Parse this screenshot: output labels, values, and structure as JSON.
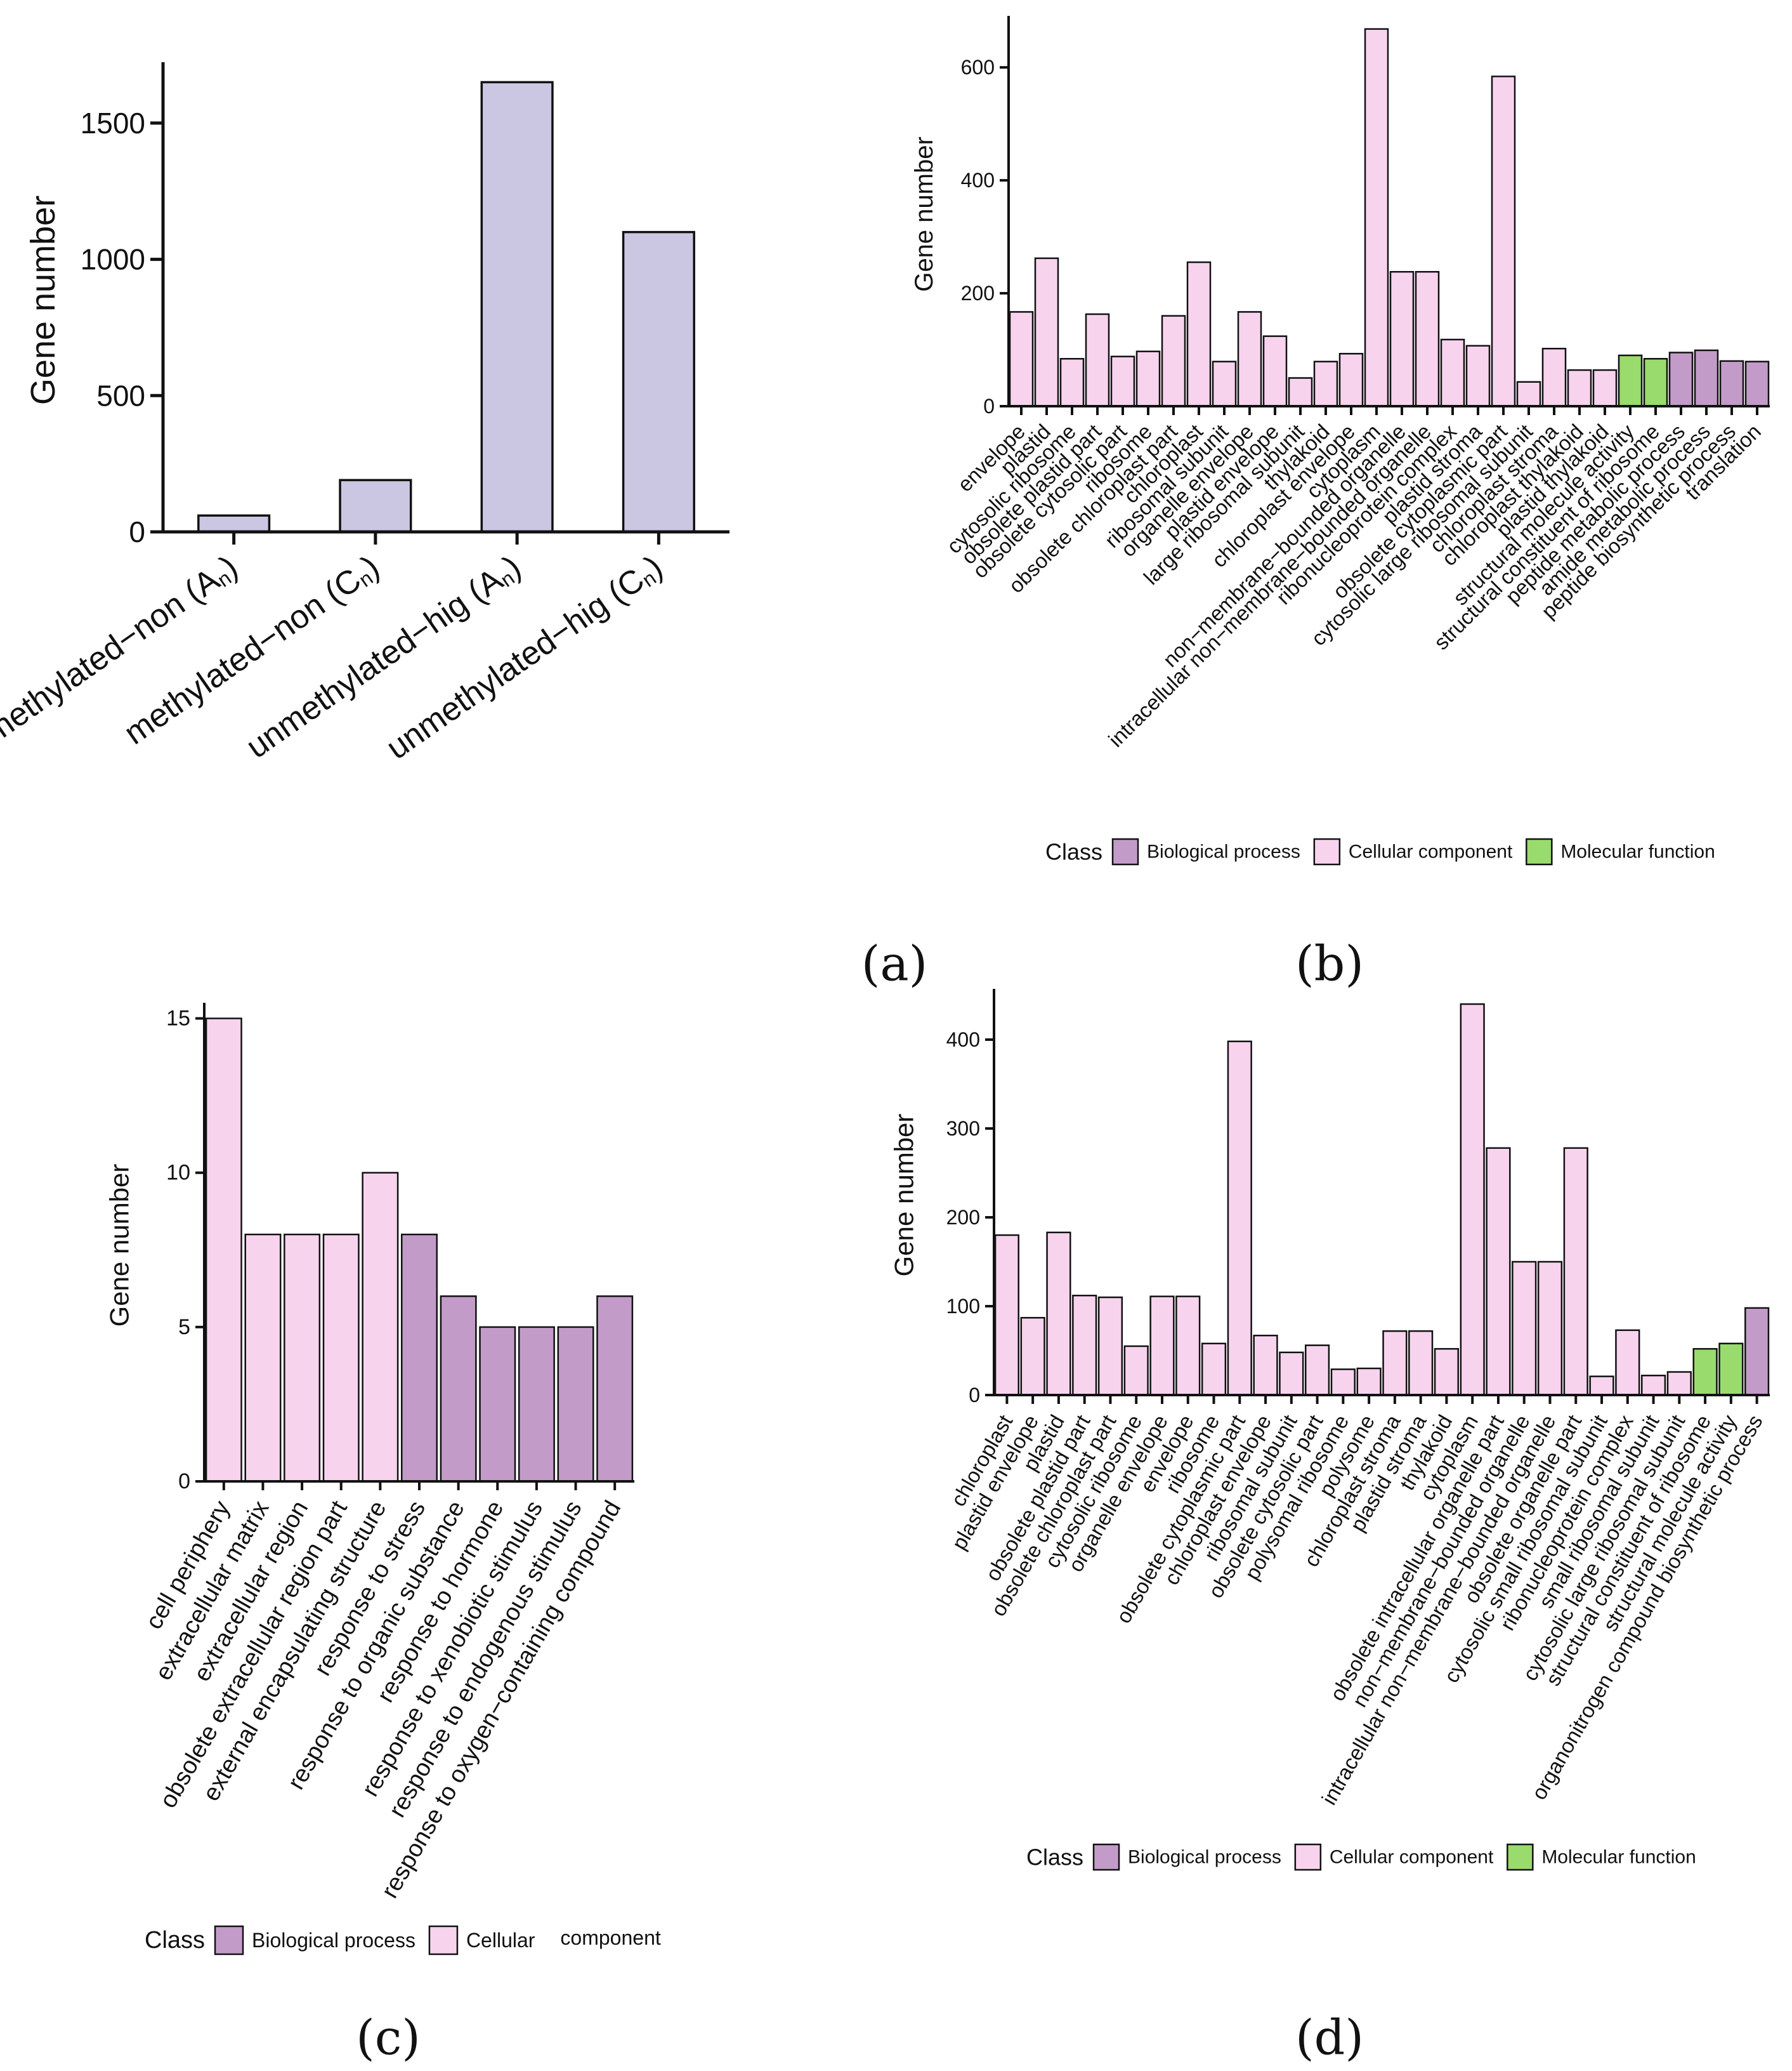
{
  "colors": {
    "a_bar": "#cbc7e2",
    "biological_process": "#c39bc9",
    "cellular_component": "#f8d3ee",
    "molecular_function": "#99db6c",
    "axis": "#111111"
  },
  "legend": {
    "title": "Class",
    "items": [
      {
        "label": "Biological process",
        "cls": "BP"
      },
      {
        "label": "Cellular component",
        "cls": "CC"
      },
      {
        "label": "Molecular function",
        "cls": "MF"
      }
    ],
    "items_c": [
      {
        "label": "Biological process",
        "cls": "BP"
      },
      {
        "label": "Cellular",
        "cls": "CC"
      }
    ],
    "items_c_extra": "component"
  },
  "chart_data": [
    {
      "panel": "a",
      "panel_label": "(a)",
      "type": "bar",
      "ylabel": "Gene number",
      "ylim": [
        0,
        1700
      ],
      "yticks": [
        0,
        500,
        1000,
        1500
      ],
      "categories": [
        {
          "main": "methylated−non (",
          "sym": "A",
          "sub": "n",
          "close": ")"
        },
        {
          "main": "methylated−non (",
          "sym": "C",
          "sub": "n",
          "close": ")"
        },
        {
          "main": "unmethylated−hig (",
          "sym": "A",
          "sub": "n",
          "close": ")"
        },
        {
          "main": "unmethylated−hig (",
          "sym": "C",
          "sub": "n",
          "close": ")"
        }
      ],
      "values": [
        60,
        190,
        1650,
        1100
      ]
    },
    {
      "panel": "b",
      "panel_label": "(b)",
      "type": "bar",
      "ylabel": "Gene number",
      "ylim": [
        0,
        680
      ],
      "yticks": [
        0,
        200,
        400,
        600
      ],
      "categories": [
        "envelope",
        "plastid",
        "cytosolic ribosome",
        "obsolete plastid part",
        "obsolete cytosolic part",
        "ribosome",
        "obsolete chloroplast part",
        "chloroplast",
        "ribosomal subunit",
        "organelle envelope",
        "plastid envelope",
        "large ribosomal subunit",
        "thylakoid",
        "chloroplast envelope",
        "cytoplasm",
        "non−membrane−bounded organelle",
        "intracellular non−membrane−bounded organelle",
        "ribonucleoprotein complex",
        "plastid stroma",
        "obsolete cytoplasmic part",
        "cytosolic large ribosomal subunit",
        "chloroplast stroma",
        "chloroplast thylakoid",
        "plastid thylakoid",
        "structural molecule activity",
        "structural constituent of ribosome",
        "peptide metabolic process",
        "amide metabolic process",
        "peptide biosynthetic process",
        "translation"
      ],
      "values": [
        167,
        262,
        84,
        163,
        88,
        97,
        160,
        255,
        79,
        167,
        124,
        50,
        79,
        93,
        668,
        238,
        238,
        118,
        107,
        584,
        43,
        102,
        64,
        64,
        90,
        84,
        95,
        99,
        80,
        79
      ],
      "classes": [
        "CC",
        "CC",
        "CC",
        "CC",
        "CC",
        "CC",
        "CC",
        "CC",
        "CC",
        "CC",
        "CC",
        "CC",
        "CC",
        "CC",
        "CC",
        "CC",
        "CC",
        "CC",
        "CC",
        "CC",
        "CC",
        "CC",
        "CC",
        "CC",
        "MF",
        "MF",
        "BP",
        "BP",
        "BP",
        "BP"
      ]
    },
    {
      "panel": "c",
      "panel_label": "(c)",
      "type": "bar",
      "ylabel": "Gene number",
      "ylim": [
        0,
        15.3
      ],
      "yticks": [
        0,
        5,
        10,
        15
      ],
      "categories": [
        "cell periphery",
        "extracellular matrix",
        "extracellular region",
        "obsolete extracellular region part",
        "external encapsulating structure",
        "response to stress",
        "response to organic substance",
        "response to hormone",
        "response to xenobiotic stimulus",
        "response to endogenous stimulus",
        "response to oxygen−containing compound"
      ],
      "values": [
        15,
        8,
        8,
        8,
        10,
        8,
        6,
        5,
        5,
        5,
        6
      ],
      "classes": [
        "CC",
        "CC",
        "CC",
        "CC",
        "CC",
        "BP",
        "BP",
        "BP",
        "BP",
        "BP",
        "BP"
      ]
    },
    {
      "panel": "d",
      "panel_label": "(d)",
      "type": "bar",
      "ylabel": "Gene number",
      "ylim": [
        0,
        450
      ],
      "yticks": [
        0,
        100,
        200,
        300,
        400
      ],
      "categories": [
        "chloroplast",
        "plastid envelope",
        "plastid",
        "obsolete plastid part",
        "obsolete chloroplast part",
        "cytosolic ribosome",
        "organelle envelope",
        "envelope",
        "ribosome",
        "obsolete cytoplasmic part",
        "chloroplast envelope",
        "ribosomal subunit",
        "obsolete cytosolic part",
        "polysomal ribosome",
        "polysome",
        "chloroplast stroma",
        "plastid stroma",
        "thylakoid",
        "cytoplasm",
        "obsolete intracellular organelle part",
        "non−membrane−bounded organelle",
        "intracellular non−membrane−bounded organelle",
        "obsolete organelle part",
        "cytosolic small ribosomal subunit",
        "ribonucleoprotein complex",
        "small ribosomal subunit",
        "cytosolic large ribosomal subunit",
        "structural constituent of ribosome",
        "structural molecule activity",
        "organonitrogen compound biosynthetic process"
      ],
      "values": [
        180,
        87,
        183,
        112,
        110,
        55,
        111,
        111,
        58,
        398,
        67,
        48,
        56,
        29,
        30,
        72,
        72,
        52,
        440,
        278,
        150,
        150,
        278,
        21,
        73,
        22,
        26,
        52,
        58,
        98
      ],
      "classes": [
        "CC",
        "CC",
        "CC",
        "CC",
        "CC",
        "CC",
        "CC",
        "CC",
        "CC",
        "CC",
        "CC",
        "CC",
        "CC",
        "CC",
        "CC",
        "CC",
        "CC",
        "CC",
        "CC",
        "CC",
        "CC",
        "CC",
        "CC",
        "CC",
        "CC",
        "CC",
        "CC",
        "MF",
        "MF",
        "BP"
      ]
    }
  ]
}
